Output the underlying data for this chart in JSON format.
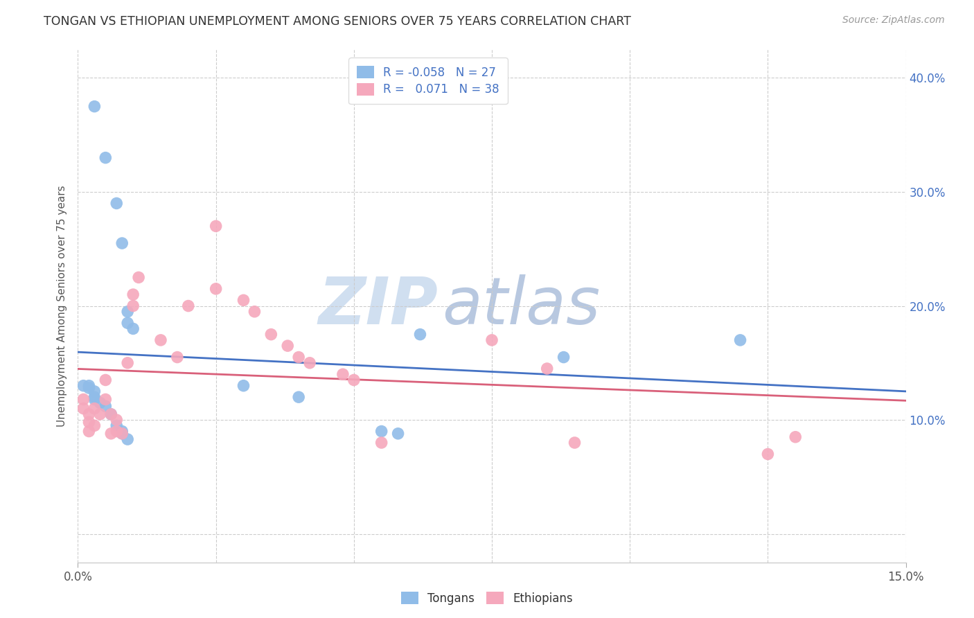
{
  "title": "TONGAN VS ETHIOPIAN UNEMPLOYMENT AMONG SENIORS OVER 75 YEARS CORRELATION CHART",
  "source": "Source: ZipAtlas.com",
  "ylabel": "Unemployment Among Seniors over 75 years",
  "xlim": [
    0.0,
    0.15
  ],
  "ylim": [
    -0.025,
    0.425
  ],
  "tongan_color": "#90bce8",
  "ethiopian_color": "#f5a8bc",
  "tongan_line_color": "#4472c4",
  "ethiopian_line_color": "#d9607a",
  "legend_R_tongan": "-0.058",
  "legend_N_tongan": "27",
  "legend_R_ethiopian": "0.071",
  "legend_N_ethiopian": "38",
  "watermark_zip": "ZIP",
  "watermark_atlas": "atlas",
  "background_color": "#ffffff",
  "tongan_x": [
    0.003,
    0.005,
    0.007,
    0.008,
    0.009,
    0.009,
    0.01,
    0.001,
    0.002,
    0.002,
    0.003,
    0.003,
    0.003,
    0.004,
    0.005,
    0.006,
    0.007,
    0.008,
    0.008,
    0.009,
    0.03,
    0.04,
    0.055,
    0.058,
    0.062,
    0.088,
    0.12
  ],
  "tongan_y": [
    0.375,
    0.33,
    0.29,
    0.255,
    0.195,
    0.185,
    0.18,
    0.13,
    0.13,
    0.128,
    0.125,
    0.12,
    0.118,
    0.115,
    0.112,
    0.105,
    0.095,
    0.09,
    0.088,
    0.083,
    0.13,
    0.12,
    0.09,
    0.088,
    0.175,
    0.155,
    0.17
  ],
  "ethiopian_x": [
    0.001,
    0.001,
    0.002,
    0.002,
    0.002,
    0.003,
    0.003,
    0.004,
    0.005,
    0.005,
    0.006,
    0.006,
    0.007,
    0.007,
    0.008,
    0.009,
    0.01,
    0.01,
    0.011,
    0.015,
    0.018,
    0.02,
    0.025,
    0.025,
    0.03,
    0.032,
    0.035,
    0.038,
    0.04,
    0.042,
    0.048,
    0.05,
    0.055,
    0.075,
    0.085,
    0.09,
    0.125,
    0.13
  ],
  "ethiopian_y": [
    0.118,
    0.11,
    0.105,
    0.098,
    0.09,
    0.11,
    0.095,
    0.105,
    0.135,
    0.118,
    0.105,
    0.088,
    0.1,
    0.09,
    0.088,
    0.15,
    0.21,
    0.2,
    0.225,
    0.17,
    0.155,
    0.2,
    0.27,
    0.215,
    0.205,
    0.195,
    0.175,
    0.165,
    0.155,
    0.15,
    0.14,
    0.135,
    0.08,
    0.17,
    0.145,
    0.08,
    0.07,
    0.085
  ]
}
